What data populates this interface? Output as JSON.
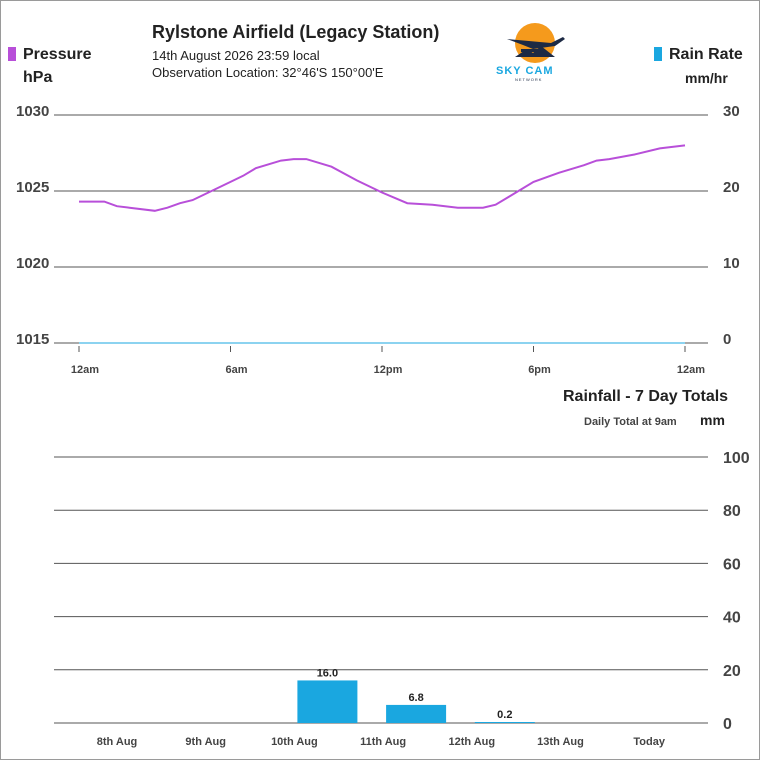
{
  "header": {
    "title": "Rylstone Airfield (Legacy Station)",
    "date_line": "14th August 2026  23:59 local",
    "location_line": "Observation Location: 32°46'S 150°00'E"
  },
  "logo": {
    "text": "SKY CAM",
    "sub": "NETWORK",
    "colors": {
      "sun": "#f59a1c",
      "plane": "#1d2a44",
      "text": "#1aa7e0"
    }
  },
  "pressure_legend": {
    "label": "Pressure",
    "unit": "hPa",
    "color": "#b84fd9"
  },
  "rain_legend": {
    "label": "Rain Rate",
    "unit": "mm/hr",
    "color": "#1aa7e0"
  },
  "rainfall_section": {
    "title": "Rainfall - 7 Day Totals",
    "note": "Daily Total at 9am",
    "unit": "mm"
  },
  "chart_data": [
    {
      "type": "line",
      "x_labels": [
        "12am",
        "6am",
        "12pm",
        "6pm",
        "12am"
      ],
      "y_left_ticks": [
        "1030",
        "1025",
        "1020",
        "1015"
      ],
      "y_right_ticks": [
        "30",
        "20",
        "10",
        "0"
      ],
      "ylim_left": [
        1015,
        1030
      ],
      "ylim_right": [
        0,
        30
      ],
      "xlim_hours": [
        0,
        24
      ],
      "grid": true,
      "series": [
        {
          "name": "Pressure",
          "color": "#b84fd9",
          "x_hours": [
            0,
            1,
            1.5,
            2,
            3,
            3.5,
            4,
            4.5,
            5,
            6,
            6.5,
            7,
            8,
            8.5,
            9,
            10,
            11,
            12,
            13,
            14,
            15,
            16,
            16.5,
            17,
            18,
            19,
            20,
            20.5,
            21,
            22,
            23,
            24
          ],
          "values": [
            1024.3,
            1024.3,
            1024.0,
            1023.9,
            1023.7,
            1023.9,
            1024.2,
            1024.4,
            1024.8,
            1025.6,
            1026.0,
            1026.5,
            1027.0,
            1027.1,
            1027.1,
            1026.6,
            1025.7,
            1024.9,
            1024.2,
            1024.1,
            1023.9,
            1023.9,
            1024.1,
            1024.6,
            1025.6,
            1026.2,
            1026.7,
            1027.0,
            1027.1,
            1027.4,
            1027.8,
            1028.0
          ]
        },
        {
          "name": "Rain Rate",
          "color": "#1aa7e0",
          "x_hours": [
            0,
            24
          ],
          "values": [
            0,
            0
          ]
        }
      ]
    },
    {
      "type": "bar",
      "categories": [
        "8th Aug",
        "9th Aug",
        "10th Aug",
        "11th Aug",
        "12th Aug",
        "13th Aug",
        "Today"
      ],
      "values": [
        0,
        0,
        16.0,
        6.8,
        0.2,
        0,
        0
      ],
      "value_labels": [
        "",
        "",
        "16.0",
        "6.8",
        "0.2",
        "",
        ""
      ],
      "y_ticks": [
        "100",
        "80",
        "60",
        "40",
        "20",
        "0"
      ],
      "ylim": [
        0,
        100
      ],
      "grid": true,
      "color": "#1aa7e0"
    }
  ]
}
